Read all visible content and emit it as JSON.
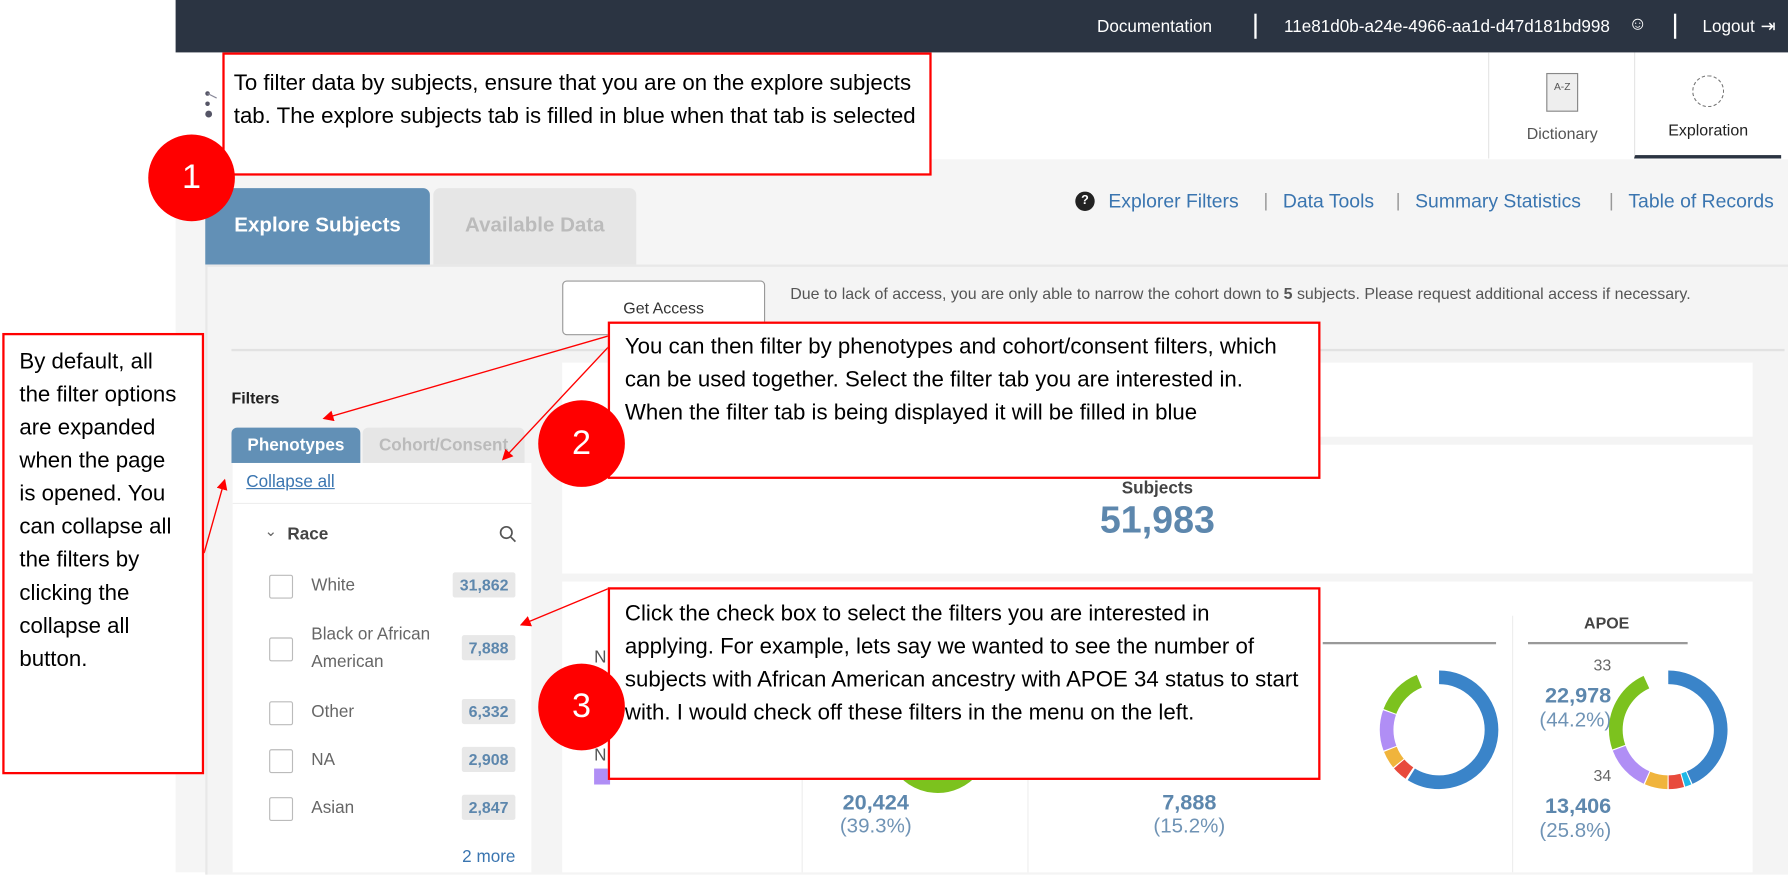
{
  "topbar": {
    "documentation": "Documentation",
    "user_id": "11e81d0b-a24e-4966-aa1d-d47d181bd998",
    "logout": "Logout"
  },
  "nav": {
    "dictionary": "Dictionary",
    "dictionary_icon_text": "A-Z",
    "exploration": "Exploration"
  },
  "tabs": {
    "explore_subjects": "Explore Subjects",
    "available_data": "Available Data",
    "active_color": "#6290b6"
  },
  "links": {
    "explorer_filters": "Explorer Filters",
    "data_tools": "Data Tools",
    "summary_statistics": "Summary Statistics",
    "table_of_records": "Table of Records",
    "separator": "|"
  },
  "access": {
    "button": "Get Access",
    "note_before": "Due to lack of access, you are only able to narrow the cohort down to ",
    "note_count": "5",
    "note_after": " subjects. Please request additional access if necessary."
  },
  "filters": {
    "title": "Filters",
    "tabs": [
      "Phenotypes",
      "Cohort/Consent"
    ],
    "collapse_all": "Collapse all",
    "group": "Race",
    "items": [
      {
        "label": "White",
        "count": "31,862"
      },
      {
        "label": "Black or African American",
        "count": "7,888"
      },
      {
        "label": "Other",
        "count": "6,332"
      },
      {
        "label": "NA",
        "count": "2,908"
      },
      {
        "label": "Asian",
        "count": "2,847"
      }
    ],
    "more": "2 more"
  },
  "summary": {
    "subjects_label": "Subjects",
    "subjects_count": "51,983"
  },
  "charts": {
    "left_labels": [
      "N",
      "N"
    ],
    "col2": {
      "value": "20,424",
      "pct": "(39.3%)"
    },
    "col3": {
      "value": "7,888",
      "pct": "(15.2%)"
    },
    "apoe": {
      "title": "APOE",
      "label_33": "33",
      "value_33": "22,978",
      "pct_33": "(44.2%)",
      "label_34": "34",
      "value_34": "13,406",
      "pct_34": "(25.8%)"
    },
    "colors": {
      "blue": "#3a84c9",
      "green": "#7cc21e",
      "purple": "#b08ef5",
      "orange": "#f0b43c",
      "red": "#e84a3c",
      "cyan": "#1fb8e8"
    }
  },
  "annotations": [
    {
      "number": "1",
      "text": "To filter data by subjects, ensure that you are on the explore subjects tab. The explore subjects tab is filled in blue when that tab is selected"
    },
    {
      "text": "By default, all the filter options are expanded when the page is opened. You can collapse all the filters by clicking the collapse all button."
    },
    {
      "number": "2",
      "text": "You can then filter by phenotypes and cohort/consent filters, which can be used together. Select the filter tab you are interested in. When the filter tab is being displayed it will be filled in blue"
    },
    {
      "number": "3",
      "text": "Click the check box to select the filters you are interested in applying. For example, lets say we wanted to see the number of subjects with African American ancestry with APOE 34 status to start with. I would check off these filters in the menu on the left."
    }
  ]
}
